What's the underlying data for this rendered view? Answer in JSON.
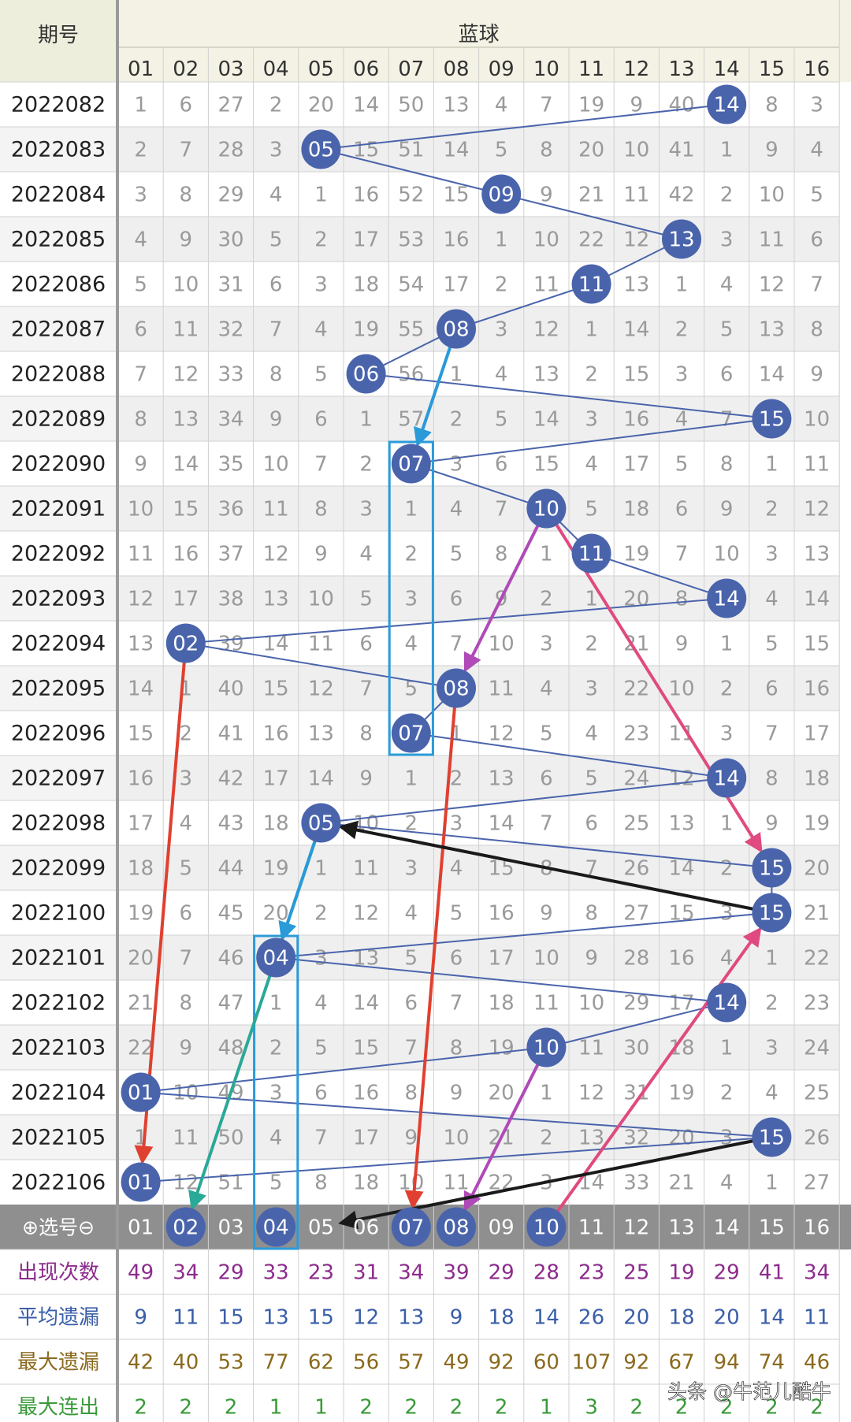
{
  "header": {
    "period_label": "期号",
    "blue_label": "蓝球",
    "columns": [
      "01",
      "02",
      "03",
      "04",
      "05",
      "06",
      "07",
      "08",
      "09",
      "10",
      "11",
      "12",
      "13",
      "14",
      "15",
      "16"
    ]
  },
  "select_row": {
    "label": "⊕选号⊖",
    "selected": [
      "02",
      "04",
      "07",
      "08",
      "10"
    ],
    "boxed": [
      "04"
    ]
  },
  "stat_rows": [
    {
      "label": "出现次数",
      "color": "#8c2b8c",
      "values": [
        "49",
        "34",
        "29",
        "33",
        "23",
        "31",
        "34",
        "39",
        "29",
        "28",
        "23",
        "25",
        "19",
        "29",
        "41",
        "34"
      ]
    },
    {
      "label": "平均遗漏",
      "color": "#3a5ea8",
      "values": [
        "9",
        "11",
        "15",
        "13",
        "15",
        "12",
        "13",
        "9",
        "18",
        "14",
        "26",
        "20",
        "18",
        "20",
        "14",
        "11"
      ]
    },
    {
      "label": "最大遗漏",
      "color": "#8a6a1e",
      "values": [
        "42",
        "40",
        "53",
        "77",
        "62",
        "56",
        "57",
        "49",
        "92",
        "60",
        "107",
        "92",
        "67",
        "94",
        "74",
        "46"
      ]
    },
    {
      "label": "最大连出",
      "color": "#3a9a3a",
      "values": [
        "2",
        "2",
        "2",
        "1",
        "1",
        "2",
        "2",
        "2",
        "2",
        "1",
        "3",
        "2",
        "2",
        "2",
        "2",
        "2"
      ]
    }
  ],
  "watermark": "头条 @牛范儿酷牛",
  "colors": {
    "ball": "#4a64ac",
    "select_bg": "#8f8f8f",
    "box": "#2b9bd8",
    "trend": "#4a64ac"
  },
  "chart_data": {
    "type": "table",
    "periods": [
      "2022082",
      "2022083",
      "2022084",
      "2022085",
      "2022086",
      "2022087",
      "2022088",
      "2022089",
      "2022090",
      "2022091",
      "2022092",
      "2022093",
      "2022094",
      "2022095",
      "2022096",
      "2022097",
      "2022098",
      "2022099",
      "2022100",
      "2022101",
      "2022102",
      "2022103",
      "2022104",
      "2022105",
      "2022106"
    ],
    "winners": [
      "14",
      "05",
      "09",
      "13",
      "11",
      "08",
      "06",
      "15",
      "07",
      "10",
      "11",
      "14",
      "02",
      "08",
      "07",
      "14",
      "05",
      "15",
      "15",
      "04",
      "14",
      "10",
      "01",
      "15",
      "01"
    ],
    "grid": [
      [
        "1",
        "6",
        "27",
        "2",
        "20",
        "14",
        "50",
        "13",
        "4",
        "7",
        "19",
        "9",
        "40",
        "14",
        "8",
        "3"
      ],
      [
        "2",
        "7",
        "28",
        "3",
        "05",
        "15",
        "51",
        "14",
        "5",
        "8",
        "20",
        "10",
        "41",
        "1",
        "9",
        "4"
      ],
      [
        "3",
        "8",
        "29",
        "4",
        "1",
        "16",
        "52",
        "15",
        "09",
        "9",
        "21",
        "11",
        "42",
        "2",
        "10",
        "5"
      ],
      [
        "4",
        "9",
        "30",
        "5",
        "2",
        "17",
        "53",
        "16",
        "1",
        "10",
        "22",
        "12",
        "13",
        "3",
        "11",
        "6"
      ],
      [
        "5",
        "10",
        "31",
        "6",
        "3",
        "18",
        "54",
        "17",
        "2",
        "11",
        "11",
        "13",
        "1",
        "4",
        "12",
        "7"
      ],
      [
        "6",
        "11",
        "32",
        "7",
        "4",
        "19",
        "55",
        "08",
        "3",
        "12",
        "1",
        "14",
        "2",
        "5",
        "13",
        "8"
      ],
      [
        "7",
        "12",
        "33",
        "8",
        "5",
        "06",
        "56",
        "1",
        "4",
        "13",
        "2",
        "15",
        "3",
        "6",
        "14",
        "9"
      ],
      [
        "8",
        "13",
        "34",
        "9",
        "6",
        "1",
        "57",
        "2",
        "5",
        "14",
        "3",
        "16",
        "4",
        "7",
        "15",
        "10"
      ],
      [
        "9",
        "14",
        "35",
        "10",
        "7",
        "2",
        "07",
        "3",
        "6",
        "15",
        "4",
        "17",
        "5",
        "8",
        "1",
        "11"
      ],
      [
        "10",
        "15",
        "36",
        "11",
        "8",
        "3",
        "1",
        "4",
        "7",
        "10",
        "5",
        "18",
        "6",
        "9",
        "2",
        "12"
      ],
      [
        "11",
        "16",
        "37",
        "12",
        "9",
        "4",
        "2",
        "5",
        "8",
        "1",
        "11",
        "19",
        "7",
        "10",
        "3",
        "13"
      ],
      [
        "12",
        "17",
        "38",
        "13",
        "10",
        "5",
        "3",
        "6",
        "9",
        "2",
        "1",
        "20",
        "8",
        "14",
        "4",
        "14"
      ],
      [
        "13",
        "02",
        "39",
        "14",
        "11",
        "6",
        "4",
        "7",
        "10",
        "3",
        "2",
        "21",
        "9",
        "1",
        "5",
        "15"
      ],
      [
        "14",
        "1",
        "40",
        "15",
        "12",
        "7",
        "5",
        "08",
        "11",
        "4",
        "3",
        "22",
        "10",
        "2",
        "6",
        "16"
      ],
      [
        "15",
        "2",
        "41",
        "16",
        "13",
        "8",
        "07",
        "1",
        "12",
        "5",
        "4",
        "23",
        "11",
        "3",
        "7",
        "17"
      ],
      [
        "16",
        "3",
        "42",
        "17",
        "14",
        "9",
        "1",
        "2",
        "13",
        "6",
        "5",
        "24",
        "12",
        "14",
        "8",
        "18"
      ],
      [
        "17",
        "4",
        "43",
        "18",
        "05",
        "10",
        "2",
        "3",
        "14",
        "7",
        "6",
        "25",
        "13",
        "1",
        "9",
        "19"
      ],
      [
        "18",
        "5",
        "44",
        "19",
        "1",
        "11",
        "3",
        "4",
        "15",
        "8",
        "7",
        "26",
        "14",
        "2",
        "15",
        "20"
      ],
      [
        "19",
        "6",
        "45",
        "20",
        "2",
        "12",
        "4",
        "5",
        "16",
        "9",
        "8",
        "27",
        "15",
        "3",
        "15",
        "21"
      ],
      [
        "20",
        "7",
        "46",
        "04",
        "3",
        "13",
        "5",
        "6",
        "17",
        "10",
        "9",
        "28",
        "16",
        "4",
        "1",
        "22"
      ],
      [
        "21",
        "8",
        "47",
        "1",
        "4",
        "14",
        "6",
        "7",
        "18",
        "11",
        "10",
        "29",
        "17",
        "14",
        "2",
        "23"
      ],
      [
        "22",
        "9",
        "48",
        "2",
        "5",
        "15",
        "7",
        "8",
        "19",
        "10",
        "11",
        "30",
        "18",
        "1",
        "3",
        "24"
      ],
      [
        "01",
        "10",
        "49",
        "3",
        "6",
        "16",
        "8",
        "9",
        "20",
        "1",
        "12",
        "31",
        "19",
        "2",
        "4",
        "25"
      ],
      [
        "1",
        "11",
        "50",
        "4",
        "7",
        "17",
        "9",
        "10",
        "21",
        "2",
        "13",
        "32",
        "20",
        "3",
        "15",
        "26"
      ],
      [
        "01",
        "12",
        "51",
        "5",
        "8",
        "18",
        "10",
        "11",
        "22",
        "3",
        "14",
        "33",
        "21",
        "4",
        "1",
        "27"
      ]
    ],
    "boxes": [
      {
        "column": "07",
        "from": "2022090",
        "to": "2022096"
      },
      {
        "column": "04",
        "from": "2022101",
        "to": "select"
      }
    ],
    "arrows": [
      {
        "color": "#2a9ad8",
        "from": [
          "2022087",
          "08"
        ],
        "to": [
          "2022090",
          "07"
        ]
      },
      {
        "color": "#b04ab8",
        "from": [
          "2022091",
          "10"
        ],
        "to": [
          "2022095",
          "08"
        ]
      },
      {
        "color": "#e04a80",
        "from": [
          "2022091",
          "10"
        ],
        "to": [
          "2022099",
          "15"
        ]
      },
      {
        "color": "#e04030",
        "from": [
          "2022094",
          "02"
        ],
        "to": [
          "2022106",
          "01"
        ]
      },
      {
        "color": "#e04030",
        "from": [
          "2022095",
          "08"
        ],
        "to": [
          "select",
          "07"
        ]
      },
      {
        "color": "#1a1a1a",
        "from": [
          "2022100",
          "15"
        ],
        "to": [
          "2022098",
          "05"
        ]
      },
      {
        "color": "#2aa898",
        "from": [
          "2022098",
          "05"
        ],
        "to": [
          "select",
          "02"
        ]
      },
      {
        "color": "#2a9ad8",
        "from": [
          "2022098",
          "05"
        ],
        "to": [
          "2022101",
          "04"
        ]
      },
      {
        "color": "#b04ab8",
        "from": [
          "2022103",
          "10"
        ],
        "to": [
          "select",
          "08"
        ]
      },
      {
        "color": "#e04a80",
        "from": [
          "select",
          "10"
        ],
        "to": [
          "2022100",
          "15"
        ]
      },
      {
        "color": "#1a1a1a",
        "from": [
          "2022105",
          "15"
        ],
        "to": [
          "select",
          "05"
        ]
      }
    ]
  }
}
